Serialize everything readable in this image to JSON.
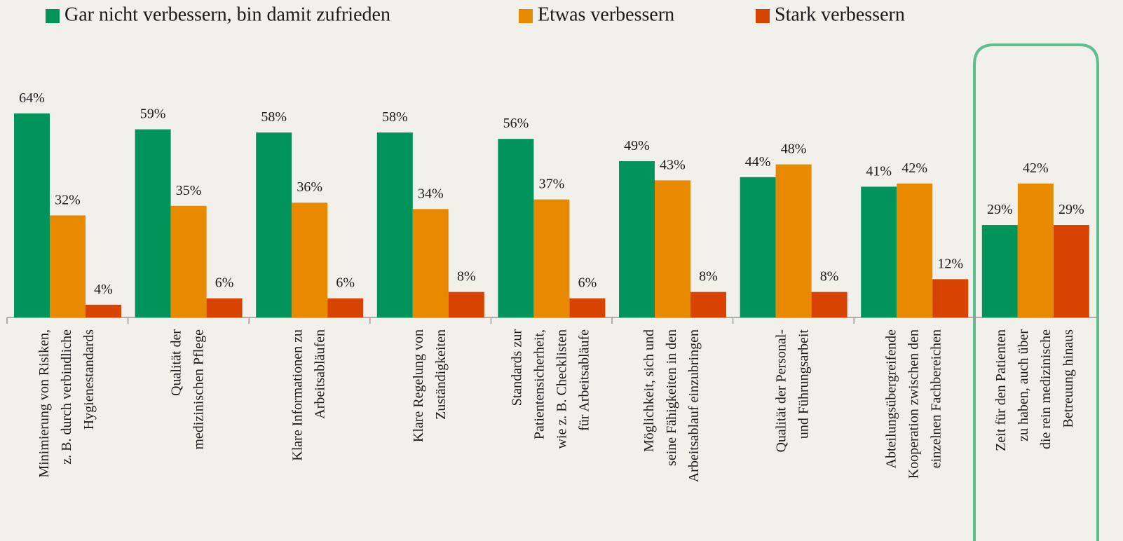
{
  "chart_data": {
    "type": "bar",
    "categories": [
      [
        "Minimierung von Risiken,",
        "z. B. durch verbindliche",
        "Hygienestandards"
      ],
      [
        "Qualität der",
        "medizinischen Pflege"
      ],
      [
        "Klare Informationen zu",
        "Arbeitsabläufen"
      ],
      [
        "Klare Regelung von",
        "Zuständigkeiten"
      ],
      [
        "Standards zur",
        "Patientensicherheit,",
        "wie z. B. Checklisten",
        "für Arbeitsabläufe"
      ],
      [
        "Möglichkeit, sich und",
        "seine Fähigkeiten in den",
        "Arbeitsablauf einzubringen"
      ],
      [
        "Qualität der Personal-",
        "und Führungsarbeit"
      ],
      [
        "Abteilungsübergreifende",
        "Kooperation zwischen den",
        "einzelnen Fachbereichen"
      ],
      [
        "Zeit für den Patienten",
        "zu haben, auch über",
        "die rein medizinische",
        "Betreuung hinaus"
      ]
    ],
    "series": [
      {
        "name": "Gar nicht verbessern, bin damit zufrieden",
        "color": "#00935a",
        "values": [
          64,
          59,
          58,
          58,
          56,
          49,
          44,
          41,
          29
        ],
        "value_labels": [
          "64%",
          "59%",
          "58%",
          "58%",
          "56%",
          "49%",
          "44%",
          "41%",
          "29%"
        ]
      },
      {
        "name": "Etwas verbessern",
        "color": "#e88a00",
        "values": [
          32,
          35,
          36,
          34,
          37,
          43,
          48,
          42,
          42
        ],
        "value_labels": [
          "32%",
          "35%",
          "36%",
          "34%",
          "37%",
          "43%",
          "48%",
          "42%",
          "42%"
        ]
      },
      {
        "name": "Stark verbessern",
        "color": "#d84300",
        "values": [
          4,
          6,
          6,
          8,
          6,
          8,
          8,
          12,
          29
        ],
        "value_labels": [
          "4%",
          "6%",
          "6%",
          "8%",
          "6%",
          "8%",
          "8%",
          "12%",
          "29%"
        ]
      }
    ]
  }
}
